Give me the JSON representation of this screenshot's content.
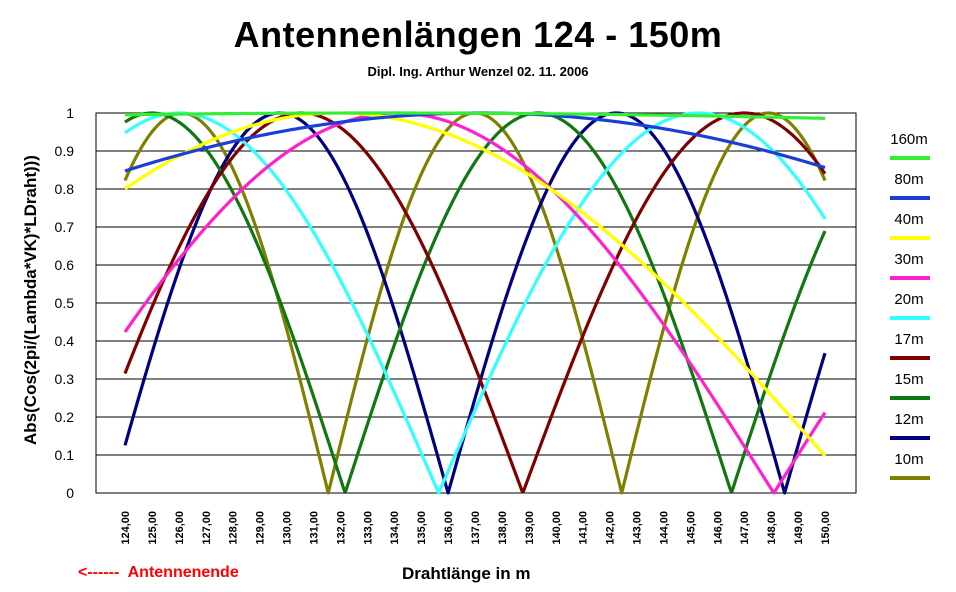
{
  "chart_data": {
    "type": "line",
    "title": "Antennenlängen 124 - 150m",
    "subtitle": "Dipl. Ing. Arthur Wenzel  02. 11. 2006",
    "xlabel": "Drahtlänge in m",
    "ylabel": "Abs(Cos(2pi/(Lambda*VK)*LDraht)))",
    "note": "<------  Antennenende",
    "x_range": [
      124,
      150
    ],
    "x_ticks": [
      "124,00",
      "125,00",
      "126,00",
      "127,00",
      "128,00",
      "129,00",
      "130,00",
      "131,00",
      "132,00",
      "133,00",
      "134,00",
      "135,00",
      "136,00",
      "137,00",
      "138,00",
      "139,00",
      "140,00",
      "141,00",
      "142,00",
      "143,00",
      "144,00",
      "145,00",
      "146,00",
      "147,00",
      "148,00",
      "149,00",
      "150,00"
    ],
    "ylim": [
      0,
      1
    ],
    "y_ticks": [
      "0",
      "0.1",
      "0.2",
      "0.3",
      "0.4",
      "0.5",
      "0.6",
      "0.7",
      "0.8",
      "0.9",
      "1"
    ],
    "grid": true,
    "legend_position": "right",
    "series": [
      {
        "name": "160m",
        "color": "#33ee33",
        "period": 308.0,
        "phase": 133.5
      },
      {
        "name": "80m",
        "color": "#1a3fd8",
        "period": 74.1,
        "phase": 137.2
      },
      {
        "name": "40m",
        "color": "#ffff00",
        "period": 38.6,
        "phase": 131.9
      },
      {
        "name": "30m",
        "color": "#ff22cc",
        "period": 28.0,
        "phase": 134.1
      },
      {
        "name": "20m",
        "color": "#33ffff",
        "period": 19.3,
        "phase": 126.0
      },
      {
        "name": "17m",
        "color": "#800000",
        "period": 16.45,
        "phase": 130.55
      },
      {
        "name": "15m",
        "color": "#117711",
        "period": 14.35,
        "phase": 125.0
      },
      {
        "name": "12m",
        "color": "#000080",
        "period": 12.5,
        "phase": 129.75
      },
      {
        "name": "10m",
        "color": "#808000",
        "period": 10.9,
        "phase": 126.1
      }
    ]
  }
}
